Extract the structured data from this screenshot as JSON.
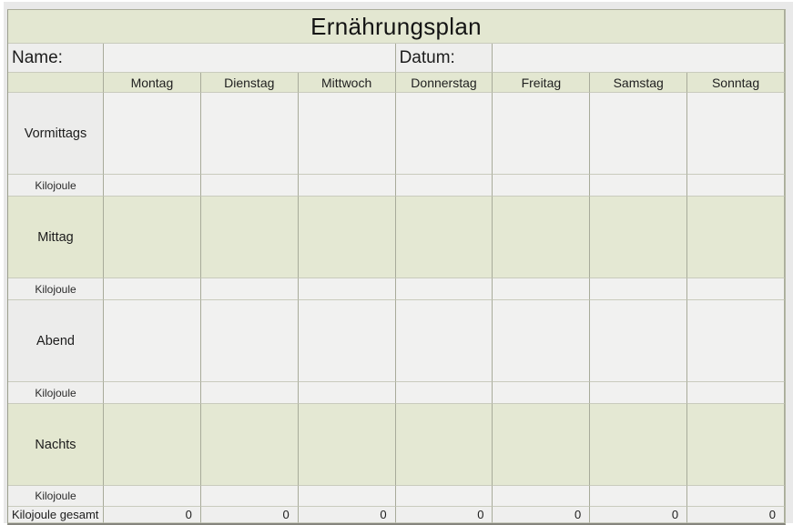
{
  "title": "Ernährungsplan",
  "header": {
    "name_label": "Name:",
    "name_value": "",
    "datum_label": "Datum:",
    "datum_value": ""
  },
  "days": [
    "Montag",
    "Dienstag",
    "Mittwoch",
    "Donnerstag",
    "Freitag",
    "Samstag",
    "Sonntag"
  ],
  "meals": [
    "Vormittags",
    "Mittag",
    "Abend",
    "Nachts"
  ],
  "row_labels": {
    "kilojoule": "Kilojoule",
    "total": "Kilojoule gesamt"
  },
  "totals": [
    "0",
    "0",
    "0",
    "0",
    "0",
    "0",
    "0"
  ],
  "colors": {
    "band_green": "#e3e7d1",
    "cell_green": "#e4e8d3",
    "cell_gray": "#f1f1f0",
    "label_gray": "#ececeb",
    "grid_vertical": "#a8ab9a",
    "grid_horizontal": "#c9cbbd",
    "page_background": "#e9e9e9",
    "text": "#1c1c1c"
  }
}
